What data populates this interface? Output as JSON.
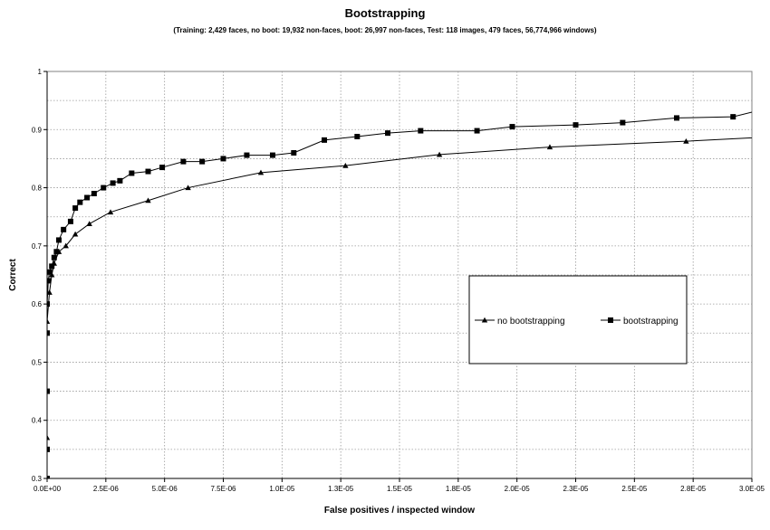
{
  "chart_data": {
    "type": "line",
    "title": "Bootstrapping",
    "subtitle": "(Training: 2,429 faces, no boot: 19,932 non-faces, boot: 26,997 non-faces, Test: 118 images, 479 faces, 56,774,966 windows)",
    "xlabel": "False positives / inspected window",
    "ylabel": "Correct",
    "xlim": [
      0,
      3e-05
    ],
    "ylim": [
      0.3,
      1
    ],
    "x_tick_labels": [
      "0.0E+00",
      "2.5E-06",
      "5.0E-06",
      "7.5E-06",
      "1.0E-05",
      "1.3E-05",
      "1.5E-05",
      "1.8E-05",
      "2.0E-05",
      "2.3E-05",
      "2.5E-05",
      "2.8E-05",
      "3.0E-05"
    ],
    "y_tick_labels": [
      "0.3",
      "0.4",
      "0.5",
      "0.6",
      "0.7",
      "0.8",
      "0.9",
      "1"
    ],
    "grid": true,
    "legend_position": "center-right",
    "series": [
      {
        "name": "no bootstrapping",
        "marker": "triangle",
        "color": "#000000",
        "x": [
          0,
          0,
          0,
          1e-07,
          2e-07,
          3e-07,
          5e-07,
          8e-07,
          1.2e-06,
          1.8e-06,
          2.7e-06,
          4.3e-06,
          6e-06,
          9.1e-06,
          1.27e-05,
          1.67e-05,
          2.14e-05,
          2.72e-05,
          3.1e-05
        ],
        "y": [
          0.3,
          0.37,
          0.57,
          0.62,
          0.65,
          0.67,
          0.69,
          0.7,
          0.72,
          0.738,
          0.758,
          0.778,
          0.8,
          0.826,
          0.838,
          0.857,
          0.87,
          0.88,
          0.888
        ]
      },
      {
        "name": "bootstrapping",
        "marker": "square",
        "color": "#000000",
        "x": [
          0,
          0,
          0,
          0,
          0,
          5e-08,
          1e-07,
          2e-07,
          3e-07,
          4e-07,
          5e-07,
          7e-07,
          1e-06,
          1.2e-06,
          1.4e-06,
          1.7e-06,
          2e-06,
          2.4e-06,
          2.8e-06,
          3.1e-06,
          3.6e-06,
          4.3e-06,
          4.9e-06,
          5.8e-06,
          6.6e-06,
          7.5e-06,
          8.5e-06,
          9.6e-06,
          1.05e-05,
          1.18e-05,
          1.32e-05,
          1.45e-05,
          1.59e-05,
          1.83e-05,
          1.98e-05,
          2.25e-05,
          2.45e-05,
          2.68e-05,
          2.92e-05,
          3.02e-05
        ],
        "y": [
          0.3,
          0.35,
          0.45,
          0.55,
          0.6,
          0.64,
          0.655,
          0.665,
          0.68,
          0.69,
          0.71,
          0.728,
          0.742,
          0.765,
          0.775,
          0.783,
          0.79,
          0.8,
          0.808,
          0.812,
          0.825,
          0.828,
          0.835,
          0.845,
          0.845,
          0.85,
          0.856,
          0.856,
          0.86,
          0.882,
          0.888,
          0.894,
          0.898,
          0.898,
          0.905,
          0.908,
          0.912,
          0.92,
          0.922,
          0.932
        ]
      }
    ]
  }
}
